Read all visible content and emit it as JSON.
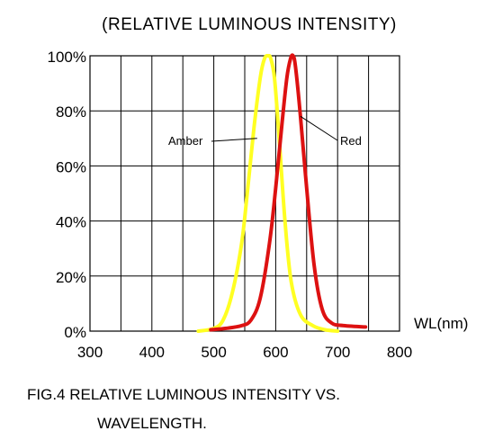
{
  "chart_data": {
    "type": "line",
    "title": "(RELATIVE LUMINOUS INTENSITY)",
    "caption_line1": "FIG.4 RELATIVE LUMINOUS INTENSITY VS.",
    "caption_line2": "WAVELENGTH.",
    "xlabel": "WL(nm)",
    "ylabel": "",
    "xlim": [
      300,
      800
    ],
    "ylim": [
      0,
      100
    ],
    "x_ticks": [
      300,
      400,
      500,
      600,
      700,
      800
    ],
    "x_tick_labels": [
      "300",
      "400",
      "500",
      "600",
      "700",
      "800"
    ],
    "y_ticks": [
      0,
      20,
      40,
      60,
      80,
      100
    ],
    "y_tick_labels": [
      "0%",
      "20%",
      "40%",
      "60%",
      "80%",
      "100%"
    ],
    "grid": true,
    "series": [
      {
        "name": "Amber",
        "color": "#ffff22",
        "x": [
          475,
          500,
          515,
          530,
          545,
          555,
          565,
          575,
          582,
          588,
          592,
          598,
          605,
          615,
          625,
          640,
          660,
          680,
          700
        ],
        "y": [
          0,
          1,
          4,
          14,
          32,
          52,
          74,
          92,
          99,
          100,
          99,
          92,
          72,
          40,
          18,
          6,
          2,
          0.5,
          0
        ]
      },
      {
        "name": "Red",
        "color": "#dd1111",
        "x": [
          495,
          520,
          545,
          560,
          575,
          590,
          600,
          610,
          618,
          624,
          628,
          632,
          640,
          650,
          662,
          675,
          690,
          710,
          745
        ],
        "y": [
          0.5,
          1,
          2,
          4,
          12,
          32,
          52,
          75,
          92,
          99,
          100,
          96,
          78,
          52,
          24,
          8,
          3,
          2,
          1.5
        ]
      }
    ]
  }
}
